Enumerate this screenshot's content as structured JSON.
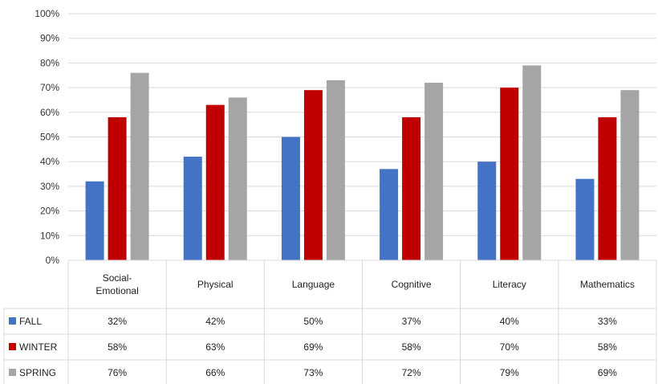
{
  "chart_data": {
    "type": "bar",
    "categories": [
      [
        "Social-",
        "Emotional"
      ],
      [
        "Physical"
      ],
      [
        "Language"
      ],
      [
        "Cognitive"
      ],
      [
        "Literacy"
      ],
      [
        "Mathematics"
      ]
    ],
    "series": [
      {
        "name": "FALL",
        "color": "#4472C4",
        "values": [
          32,
          42,
          50,
          37,
          40,
          33
        ]
      },
      {
        "name": "WINTER",
        "color": "#C00000",
        "values": [
          58,
          63,
          69,
          58,
          70,
          58
        ]
      },
      {
        "name": "SPRING",
        "color": "#A5A5A5",
        "values": [
          76,
          66,
          73,
          72,
          79,
          69
        ]
      }
    ],
    "y_ticks": [
      "0%",
      "10%",
      "20%",
      "30%",
      "40%",
      "50%",
      "60%",
      "70%",
      "80%",
      "90%",
      "100%"
    ],
    "ylim": [
      0,
      100
    ],
    "value_suffix": "%",
    "grid": true,
    "data_table": true
  }
}
